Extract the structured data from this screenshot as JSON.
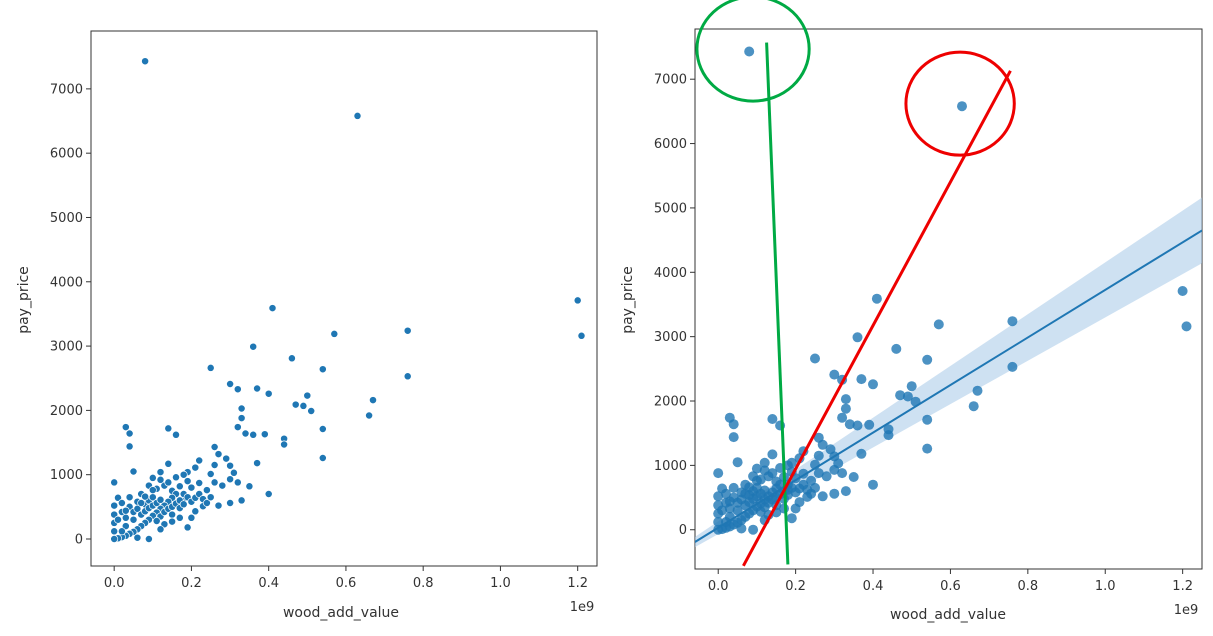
{
  "chart_data": [
    {
      "type": "scatter",
      "xlabel": "wood_add_value",
      "ylabel": "pay_price",
      "x_multiplier_label": "1e9",
      "x_ticks": [
        0.0,
        0.2,
        0.4,
        0.6,
        0.8,
        1.0,
        1.2
      ],
      "x_tick_labels": [
        "0.0",
        "0.2",
        "0.4",
        "0.6",
        "0.8",
        "1.0",
        "1.2"
      ],
      "y_ticks": [
        0,
        1000,
        2000,
        3000,
        4000,
        5000,
        6000,
        7000
      ],
      "y_tick_labels": [
        "0",
        "1000",
        "2000",
        "3000",
        "4000",
        "5000",
        "6000",
        "7000"
      ],
      "xlim": [
        -0.06,
        1.25
      ],
      "ylim": [
        -420,
        7900
      ],
      "grid": false,
      "point_color": "#1f77b4",
      "points": [
        [
          0.08,
          7430
        ],
        [
          0.63,
          6580
        ],
        [
          1.2,
          3710
        ],
        [
          1.21,
          3160
        ],
        [
          0.41,
          3590
        ],
        [
          0.57,
          3190
        ],
        [
          0.76,
          3240
        ],
        [
          0.76,
          2530
        ],
        [
          0.36,
          2990
        ],
        [
          0.25,
          2660
        ],
        [
          0.46,
          2810
        ],
        [
          0.54,
          2640
        ],
        [
          0.3,
          2410
        ],
        [
          0.32,
          2330
        ],
        [
          0.37,
          2340
        ],
        [
          0.4,
          2260
        ],
        [
          0.5,
          2230
        ],
        [
          0.47,
          2090
        ],
        [
          0.49,
          2070
        ],
        [
          0.51,
          1990
        ],
        [
          0.67,
          2160
        ],
        [
          0.66,
          1920
        ],
        [
          0.54,
          1710
        ],
        [
          0.54,
          1260
        ],
        [
          0.44,
          1560
        ],
        [
          0.44,
          1470
        ],
        [
          0.39,
          1630
        ],
        [
          0.36,
          1620
        ],
        [
          0.34,
          1640
        ],
        [
          0.33,
          2030
        ],
        [
          0.33,
          1880
        ],
        [
          0.32,
          1740
        ],
        [
          0.37,
          1180
        ],
        [
          0.31,
          1030
        ],
        [
          0.3,
          1140
        ],
        [
          0.29,
          1250
        ],
        [
          0.26,
          1430
        ],
        [
          0.27,
          1320
        ],
        [
          0.26,
          1150
        ],
        [
          0.25,
          1010
        ],
        [
          0.22,
          1220
        ],
        [
          0.21,
          1110
        ],
        [
          0.19,
          1040
        ],
        [
          0.18,
          1000
        ],
        [
          0.14,
          1720
        ],
        [
          0.16,
          1620
        ],
        [
          0.03,
          1740
        ],
        [
          0.04,
          1640
        ],
        [
          0.04,
          1440
        ],
        [
          0.05,
          1050
        ],
        [
          0.14,
          1170
        ],
        [
          0.12,
          1040
        ],
        [
          0.1,
          950
        ],
        [
          0.09,
          830
        ],
        [
          0.07,
          700
        ],
        [
          0.11,
          780
        ],
        [
          0.13,
          830
        ],
        [
          0.15,
          750
        ],
        [
          0.17,
          820
        ],
        [
          0.19,
          900
        ],
        [
          0.2,
          800
        ],
        [
          0.22,
          870
        ],
        [
          0.24,
          760
        ],
        [
          0.26,
          880
        ],
        [
          0.28,
          830
        ],
        [
          0.3,
          930
        ],
        [
          0.32,
          880
        ],
        [
          0.35,
          820
        ],
        [
          0.4,
          700
        ],
        [
          0.33,
          600
        ],
        [
          0.3,
          560
        ],
        [
          0.27,
          520
        ],
        [
          0.23,
          510
        ],
        [
          0.21,
          430
        ],
        [
          0.2,
          330
        ],
        [
          0.19,
          180
        ],
        [
          0.18,
          620
        ],
        [
          0.16,
          700
        ],
        [
          0.15,
          640
        ],
        [
          0.14,
          580
        ],
        [
          0.13,
          520
        ],
        [
          0.12,
          470
        ],
        [
          0.11,
          410
        ],
        [
          0.1,
          360
        ],
        [
          0.09,
          300
        ],
        [
          0.08,
          250
        ],
        [
          0.07,
          200
        ],
        [
          0.06,
          150
        ],
        [
          0.05,
          110
        ],
        [
          0.04,
          80
        ],
        [
          0.03,
          50
        ],
        [
          0.02,
          30
        ],
        [
          0.01,
          10
        ],
        [
          0.0,
          0
        ],
        [
          0.0,
          120
        ],
        [
          0.0,
          250
        ],
        [
          0.0,
          380
        ],
        [
          0.0,
          520
        ],
        [
          0.0,
          880
        ],
        [
          0.01,
          640
        ],
        [
          0.02,
          560
        ],
        [
          0.02,
          420
        ],
        [
          0.03,
          330
        ],
        [
          0.03,
          200
        ],
        [
          0.04,
          500
        ],
        [
          0.05,
          420
        ],
        [
          0.05,
          300
        ],
        [
          0.06,
          580
        ],
        [
          0.06,
          470
        ],
        [
          0.07,
          380
        ],
        [
          0.08,
          540
        ],
        [
          0.08,
          430
        ],
        [
          0.09,
          480
        ],
        [
          0.09,
          600
        ],
        [
          0.1,
          520
        ],
        [
          0.1,
          650
        ],
        [
          0.11,
          560
        ],
        [
          0.12,
          610
        ],
        [
          0.12,
          350
        ],
        [
          0.13,
          420
        ],
        [
          0.14,
          470
        ],
        [
          0.15,
          500
        ],
        [
          0.15,
          380
        ],
        [
          0.16,
          550
        ],
        [
          0.17,
          480
        ],
        [
          0.17,
          600
        ],
        [
          0.18,
          540
        ],
        [
          0.18,
          700
        ],
        [
          0.19,
          650
        ],
        [
          0.2,
          580
        ],
        [
          0.21,
          640
        ],
        [
          0.22,
          700
        ],
        [
          0.23,
          620
        ],
        [
          0.24,
          560
        ],
        [
          0.25,
          650
        ],
        [
          0.11,
          280
        ],
        [
          0.13,
          230
        ],
        [
          0.09,
          0
        ],
        [
          0.02,
          120
        ],
        [
          0.06,
          20
        ],
        [
          0.15,
          270
        ],
        [
          0.17,
          330
        ],
        [
          0.12,
          150
        ],
        [
          0.07,
          560
        ],
        [
          0.04,
          650
        ],
        [
          0.01,
          300
        ],
        [
          0.03,
          440
        ],
        [
          0.1,
          760
        ],
        [
          0.08,
          660
        ],
        [
          0.14,
          880
        ],
        [
          0.16,
          960
        ],
        [
          0.12,
          920
        ]
      ]
    },
    {
      "type": "scatter",
      "xlabel": "wood_add_value",
      "ylabel": "pay_price",
      "x_multiplier_label": "1e9",
      "x_ticks": [
        0.0,
        0.2,
        0.4,
        0.6,
        0.8,
        1.0,
        1.2
      ],
      "x_tick_labels": [
        "0.0",
        "0.2",
        "0.4",
        "0.6",
        "0.8",
        "1.0",
        "1.2"
      ],
      "y_ticks": [
        0,
        1000,
        2000,
        3000,
        4000,
        5000,
        6000,
        7000
      ],
      "y_tick_labels": [
        "0",
        "1000",
        "2000",
        "3000",
        "4000",
        "5000",
        "6000",
        "7000"
      ],
      "xlim": [
        -0.06,
        1.25
      ],
      "ylim": [
        -610,
        7780
      ],
      "grid": false,
      "point_color": "#1f77b4",
      "regression": {
        "color": "#1f77b4",
        "ci_color": "#a6c8e8",
        "x": [
          -0.06,
          1.25
        ],
        "y": [
          -190,
          4650
        ],
        "ci_upper": [
          -110,
          5160
        ],
        "ci_lower": [
          -270,
          4140
        ]
      },
      "annotations": {
        "green_line": {
          "color": "#00aa44",
          "x": [
            0.125,
            0.18
          ],
          "y": [
            7570,
            -540
          ]
        },
        "red_line": {
          "color": "#ee0000",
          "x": [
            0.065,
            0.755
          ],
          "y": [
            -560,
            7130
          ]
        },
        "green_circle": {
          "color": "#00aa44",
          "cx": 0.09,
          "cy": 7470,
          "rx": 0.145,
          "ry": 810
        },
        "red_circle": {
          "color": "#ee0000",
          "cx": 0.625,
          "cy": 6620,
          "rx": 0.14,
          "ry": 800
        }
      },
      "points_ref": 0
    }
  ]
}
